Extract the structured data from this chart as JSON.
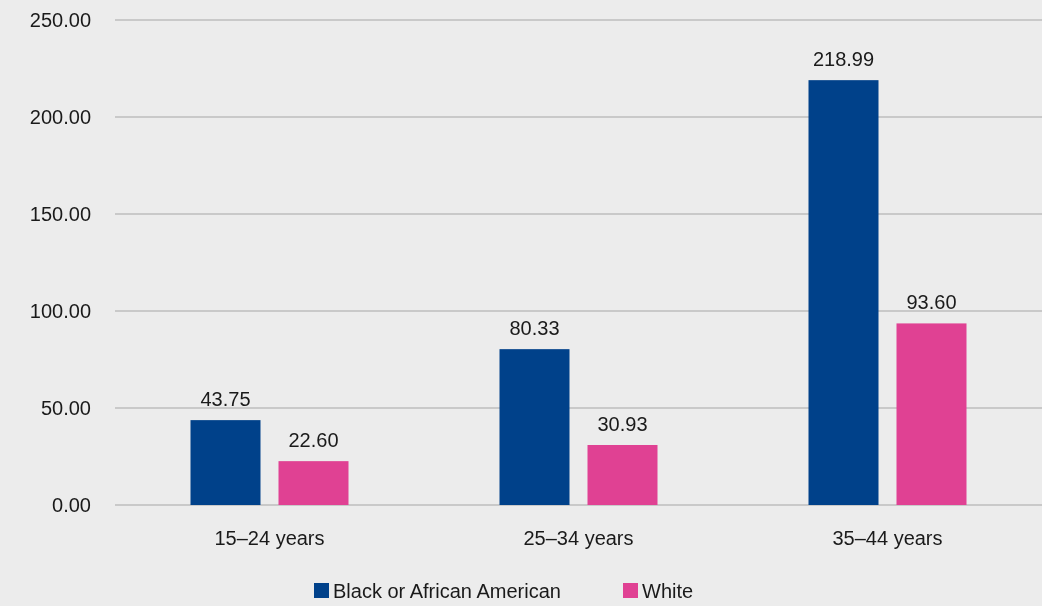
{
  "chart_data": {
    "type": "bar",
    "categories": [
      "15–24 years",
      "25–34 years",
      "35–44 years"
    ],
    "series": [
      {
        "name": "Black or African American",
        "color": "#00418a",
        "values": [
          43.75,
          80.33,
          218.99
        ],
        "value_labels": [
          "43.75",
          "80.33",
          "218.99"
        ]
      },
      {
        "name": "White",
        "color": "#e04193",
        "values": [
          22.6,
          30.93,
          93.6
        ],
        "value_labels": [
          "22.60",
          "30.93",
          "93.60"
        ]
      }
    ],
    "ylim": [
      0,
      250
    ],
    "yticks": [
      {
        "value": 0,
        "label": "0.00"
      },
      {
        "value": 50,
        "label": "50.00"
      },
      {
        "value": 100,
        "label": "100.00"
      },
      {
        "value": 150,
        "label": "150.00"
      },
      {
        "value": 200,
        "label": "200.00"
      },
      {
        "value": 250,
        "label": "250.00"
      }
    ],
    "grid": "y",
    "legend": "bottom"
  }
}
